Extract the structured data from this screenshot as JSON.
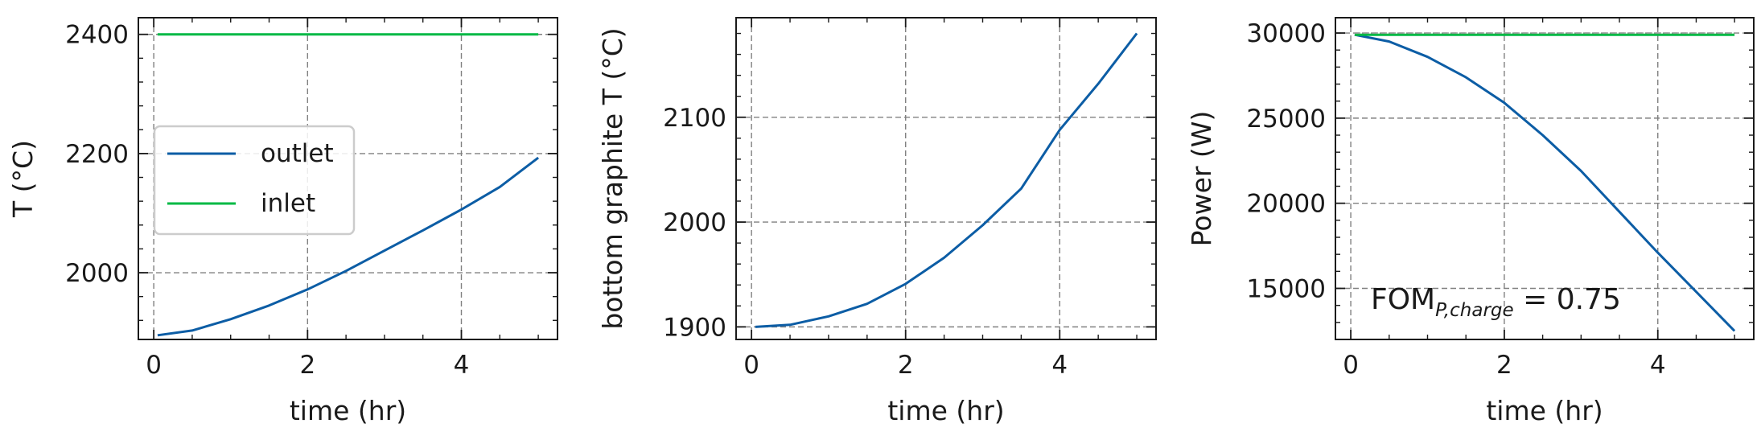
{
  "chart_data": [
    {
      "type": "line",
      "xlabel": "time (hr)",
      "ylabel": "T (°C)",
      "xlim": [
        -0.2,
        5.25
      ],
      "ylim": [
        1888,
        2428
      ],
      "xticks": [
        0,
        2,
        4
      ],
      "xtick_labels": [
        "0",
        "2",
        "4"
      ],
      "yticks": [
        2000,
        2200,
        2400
      ],
      "ytick_labels": [
        "2000",
        "2200",
        "2400"
      ],
      "grid": true,
      "legend": {
        "placement": "center-left",
        "entries": [
          "outlet",
          "inlet"
        ]
      },
      "series": [
        {
          "name": "outlet",
          "color": "#0c5da5",
          "x": [
            0.05,
            0.5,
            1.0,
            1.5,
            2.0,
            2.5,
            3.0,
            3.5,
            4.0,
            4.5,
            5.0
          ],
          "y": [
            1895,
            1903,
            1922,
            1945,
            1972,
            2003,
            2037,
            2071,
            2106,
            2144,
            2193
          ]
        },
        {
          "name": "inlet",
          "color": "#00b945",
          "x": [
            0.05,
            5.0
          ],
          "y": [
            2400,
            2400
          ]
        }
      ]
    },
    {
      "type": "line",
      "xlabel": "time (hr)",
      "ylabel": "bottom graphite T (°C)",
      "xlim": [
        -0.2,
        5.25
      ],
      "ylim": [
        1888,
        2195
      ],
      "xticks": [
        0,
        2,
        4
      ],
      "xtick_labels": [
        "0",
        "2",
        "4"
      ],
      "yticks": [
        1900,
        2000,
        2100
      ],
      "ytick_labels": [
        "1900",
        "2000",
        "2100"
      ],
      "grid": true,
      "series": [
        {
          "color": "#0c5da5",
          "x": [
            0.05,
            0.5,
            1.0,
            1.5,
            2.0,
            2.5,
            3.0,
            3.5,
            4.0,
            4.5,
            5.0
          ],
          "y": [
            1900,
            1902,
            1910,
            1922,
            1941,
            1966,
            1997,
            2032,
            2088,
            2132,
            2180
          ]
        }
      ]
    },
    {
      "type": "line",
      "xlabel": "time (hr)",
      "ylabel": "Power (W)",
      "xlim": [
        -0.2,
        5.25
      ],
      "ylim": [
        12000,
        30900
      ],
      "xticks": [
        0,
        2,
        4
      ],
      "xtick_labels": [
        "0",
        "2",
        "4"
      ],
      "yticks": [
        15000,
        20000,
        25000,
        30000
      ],
      "ytick_labels": [
        "15000",
        "20000",
        "25000",
        "30000"
      ],
      "grid": true,
      "annotation": {
        "main": "FOM",
        "sub": "P,charge",
        "rest": " = 0.75"
      },
      "series": [
        {
          "color": "#0c5da5",
          "x": [
            0.05,
            0.5,
            1.0,
            1.5,
            2.0,
            2.5,
            3.0,
            3.5,
            4.0,
            4.5,
            5.0
          ],
          "y": [
            29900,
            29500,
            28600,
            27400,
            25900,
            24000,
            21900,
            19500,
            17100,
            14800,
            12500
          ]
        },
        {
          "color": "#00b945",
          "x": [
            0.05,
            5.0
          ],
          "y": [
            29900,
            29900
          ]
        },
        {
          "color": "#9a9a9a",
          "style": "dashed",
          "x": [
            0.05,
            5.0
          ],
          "y": [
            30000,
            30000
          ]
        }
      ]
    }
  ]
}
